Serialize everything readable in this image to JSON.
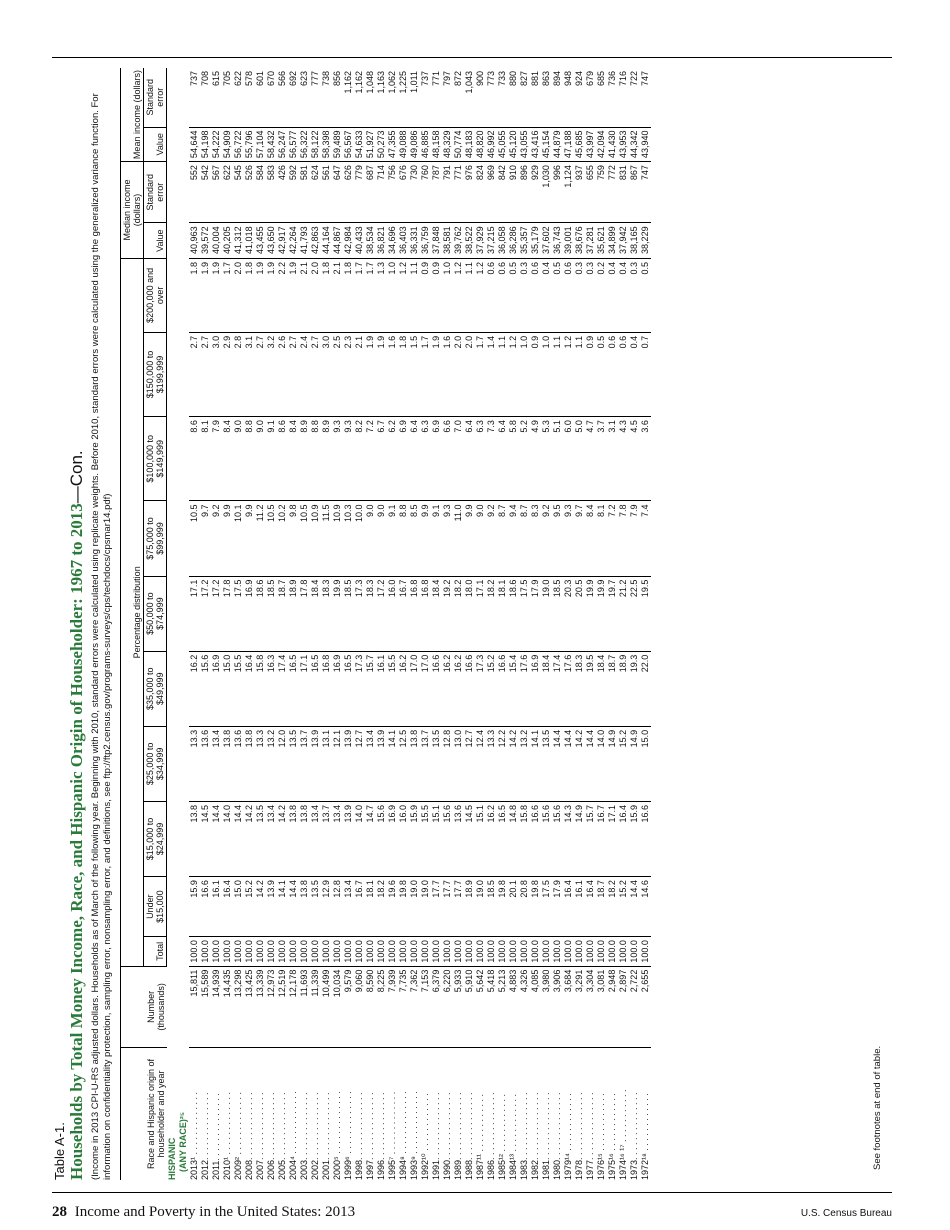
{
  "table_label": "Table A-1.",
  "title": "Households by Total Money Income, Race, and Hispanic Origin of Householder: 1967 to 2013",
  "title_suffix": "—Con.",
  "note": "(Income in 2013 CPI-U-RS adjusted dollars. Households as of March of the following year. Beginning with 2010, standard errors were calculated using replicate weights. Before 2010, standard errors were calculated using the generalized variance function. For information on confidentiality protection, sampling error, nonsampling error, and definitions, see ftp://ftp2.census.gov/programs-surveys/cps/techdocs/cpsmar14.pdf)",
  "headers": {
    "race": "Race and Hispanic origin of householder and year",
    "number": "Number (thousands)",
    "pct_group": "Percentage distribution",
    "median_group": "Median income (dollars)",
    "mean_group": "Mean income (dollars)",
    "total": "Total",
    "under15": "Under $15,000",
    "b15_25": "$15,000 to $24,999",
    "b25_35": "$25,000 to $34,999",
    "b35_50": "$35,000 to $49,999",
    "b50_75": "$50,000 to $74,999",
    "b75_100": "$75,000 to $99,999",
    "b100_150": "$100,000 to $149,999",
    "b150_200": "$150,000 to $199,999",
    "b200": "$200,000 and over",
    "value": "Value",
    "se": "Standard error"
  },
  "section1": "HISPANIC",
  "section2": "(ANY RACE)²⁵",
  "rows": [
    [
      "2013¹ . . . . . . . . . . . . .",
      "15,811",
      "100.0",
      "15.9",
      "13.8",
      "13.3",
      "16.2",
      "17.1",
      "10.5",
      "8.6",
      "2.7",
      "1.8",
      "40,963",
      "552",
      "54,644",
      "737"
    ],
    [
      "2012. . . . . . . . . . . . . .",
      "15,589",
      "100.0",
      "16.6",
      "14.5",
      "13.6",
      "15.6",
      "17.2",
      "9.7",
      "8.1",
      "2.7",
      "1.9",
      "39,572",
      "542",
      "54,198",
      "708"
    ],
    [
      "2011. . . . . . . . . . . . . .",
      "14,939",
      "100.0",
      "16.1",
      "14.4",
      "13.4",
      "16.9",
      "17.2",
      "9.2",
      "7.9",
      "3.0",
      "1.9",
      "40,004",
      "567",
      "54,222",
      "615"
    ],
    [
      "2010¹ . . . . . . . . . . . . .",
      "14,435",
      "100.0",
      "16.4",
      "14.0",
      "13.8",
      "15.0",
      "17.8",
      "9.9",
      "8.4",
      "2.9",
      "1.7",
      "40,205",
      "622",
      "54,909",
      "705"
    ],
    [
      "2009² . . . . . . . . . . . . .",
      "13,298",
      "100.0",
      "15.0",
      "14.4",
      "13.6",
      "15.5",
      "17.5",
      "10.1",
      "9.0",
      "2.8",
      "2.0",
      "41,312",
      "545",
      "56,722",
      "622"
    ],
    [
      "2008. . . . . . . . . . . . . .",
      "13,425",
      "100.0",
      "15.2",
      "14.2",
      "13.8",
      "16.4",
      "16.9",
      "9.9",
      "8.8",
      "3.1",
      "1.8",
      "41,018",
      "526",
      "55,796",
      "578"
    ],
    [
      "2007. . . . . . . . . . . . . .",
      "13,339",
      "100.0",
      "14.2",
      "13.5",
      "13.3",
      "15.8",
      "18.6",
      "11.2",
      "9.0",
      "2.7",
      "1.9",
      "43,455",
      "584",
      "57,104",
      "601"
    ],
    [
      "2006. . . . . . . . . . . . . .",
      "12,973",
      "100.0",
      "13.9",
      "13.4",
      "13.2",
      "16.3",
      "18.5",
      "10.5",
      "9.1",
      "3.2",
      "1.9",
      "43,650",
      "583",
      "58,432",
      "670"
    ],
    [
      "2005. . . . . . . . . . . . . .",
      "12,519",
      "100.0",
      "14.1",
      "14.2",
      "12.0",
      "17.4",
      "18.7",
      "10.2",
      "8.6",
      "2.6",
      "2.2",
      "42,917",
      "426",
      "56,247",
      "566"
    ],
    [
      "2004⁴ . . . . . . . . . . . . .",
      "12,178",
      "100.0",
      "14.4",
      "13.8",
      "13.5",
      "16.5",
      "18.9",
      "9.8",
      "8.4",
      "2.7",
      "1.9",
      "42,264",
      "592",
      "56,577",
      "692"
    ],
    [
      "2003. . . . . . . . . . . . . .",
      "11,693",
      "100.0",
      "13.8",
      "13.8",
      "13.7",
      "17.1",
      "17.8",
      "10.5",
      "8.9",
      "2.4",
      "2.1",
      "41,793",
      "581",
      "56,322",
      "623"
    ],
    [
      "2002. . . . . . . . . . . . . .",
      "11,339",
      "100.0",
      "13.5",
      "13.4",
      "13.9",
      "16.5",
      "18.4",
      "10.9",
      "8.8",
      "2.7",
      "2.0",
      "42,863",
      "624",
      "58,122",
      "777"
    ],
    [
      "2001. . . . . . . . . . . . . .",
      "10,499",
      "100.0",
      "12.9",
      "13.7",
      "13.1",
      "16.8",
      "18.3",
      "11.5",
      "8.9",
      "3.0",
      "1.8",
      "44,164",
      "561",
      "58,398",
      "738"
    ],
    [
      "2000⁵ . . . . . . . . . . . . .",
      "10,034",
      "100.0",
      "12.8",
      "13.4",
      "12.1",
      "16.9",
      "19.9",
      "10.9",
      "9.3",
      "2.5",
      "2.1",
      "44,867",
      "647",
      "59,489",
      "856"
    ],
    [
      "1999⁶ . . . . . . . . . . . . .",
      "9,579",
      "100.0",
      "13.4",
      "13.9",
      "13.9",
      "16.5",
      "18.5",
      "10.3",
      "9.3",
      "2.3",
      "1.8",
      "42,984",
      "626",
      "56,567",
      "1,162"
    ],
    [
      "1998. . . . . . . . . . . . . .",
      "9,060",
      "100.0",
      "16.7",
      "14.0",
      "12.7",
      "17.3",
      "17.3",
      "10.0",
      "8.2",
      "2.1",
      "1.7",
      "40,433",
      "779",
      "54,633",
      "1,162"
    ],
    [
      "1997. . . . . . . . . . . . . .",
      "8,590",
      "100.0",
      "18.1",
      "14.7",
      "13.4",
      "15.7",
      "18.3",
      "9.0",
      "7.2",
      "1.9",
      "1.7",
      "38,534",
      "687",
      "51,927",
      "1,048"
    ],
    [
      "1996. . . . . . . . . . . . . .",
      "8,225",
      "100.0",
      "18.2",
      "15.6",
      "13.9",
      "16.1",
      "17.2",
      "9.0",
      "6.7",
      "1.9",
      "1.3",
      "36,821",
      "714",
      "50,273",
      "1,163"
    ],
    [
      "1995⁷ . . . . . . . . . . . . .",
      "7,939",
      "100.0",
      "19.6",
      "16.9",
      "14.1",
      "15.5",
      "16.0",
      "9.1",
      "6.2",
      "1.6",
      "1.0",
      "34,696",
      "756",
      "47,355",
      "1,062"
    ],
    [
      "1994⁸ . . . . . . . . . . . . .",
      "7,735",
      "100.0",
      "19.8",
      "16.0",
      "12.5",
      "16.2",
      "16.7",
      "8.8",
      "6.9",
      "1.8",
      "1.2",
      "36,403",
      "676",
      "49,088",
      "1,225"
    ],
    [
      "1993⁹ . . . . . . . . . . . . .",
      "7,362",
      "100.0",
      "19.0",
      "15.9",
      "13.8",
      "17.0",
      "16.8",
      "8.5",
      "6.4",
      "1.5",
      "1.1",
      "36,331",
      "730",
      "49,086",
      "1,011"
    ],
    [
      "1992¹⁰ . . . . . . . . . . . .",
      "7,153",
      "100.0",
      "19.0",
      "15.5",
      "13.7",
      "17.0",
      "16.8",
      "9.9",
      "6.3",
      "1.7",
      "0.9",
      "36,759",
      "760",
      "46,885",
      "737"
    ],
    [
      "1991. . . . . . . . . . . . . .",
      "6,379",
      "100.0",
      "17.7",
      "15.1",
      "13.5",
      "16.6",
      "18.4",
      "9.1",
      "6.9",
      "1.9",
      "0.9",
      "37,848",
      "787",
      "48,158",
      "771"
    ],
    [
      "1990. . . . . . . . . . . . . .",
      "6,220",
      "100.0",
      "17.7",
      "15.6",
      "12.8",
      "16.2",
      "19.2",
      "9.3",
      "6.6",
      "1.6",
      "1.0",
      "38,581",
      "791",
      "48,329",
      "797"
    ],
    [
      "1989. . . . . . . . . . . . . .",
      "5,933",
      "100.0",
      "17.7",
      "13.6",
      "13.0",
      "16.2",
      "18.2",
      "11.0",
      "7.0",
      "2.0",
      "1.2",
      "39,762",
      "771",
      "50,774",
      "872"
    ],
    [
      "1988. . . . . . . . . . . . . .",
      "5,910",
      "100.0",
      "18.9",
      "14.5",
      "12.7",
      "16.6",
      "18.0",
      "9.9",
      "6.4",
      "2.0",
      "1.1",
      "38,522",
      "976",
      "48,183",
      "1,043"
    ],
    [
      "1987¹¹ . . . . . . . . . . . .",
      "5,642",
      "100.0",
      "19.0",
      "15.1",
      "12.4",
      "17.3",
      "17.1",
      "9.0",
      "6.3",
      "1.7",
      "1.2",
      "37,929",
      "824",
      "48,820",
      "900"
    ],
    [
      "1986. . . . . . . . . . . . . .",
      "5,418",
      "100.0",
      "18.5",
      "16.2",
      "13.3",
      "15.2",
      "18.2",
      "9.2",
      "7.3",
      "1.4",
      "0.6",
      "37,215",
      "969",
      "46,992",
      "773"
    ],
    [
      "1985¹² . . . . . . . . . . . .",
      "5,213",
      "100.0",
      "19.8",
      "16.5",
      "12.2",
      "16.6",
      "18.1",
      "8.7",
      "6.4",
      "1.1",
      "0.6",
      "36,058",
      "842",
      "45,055",
      "733"
    ],
    [
      "1984¹³ . . . . . . . . . . . .",
      "4,883",
      "100.0",
      "20.1",
      "14.8",
      "14.2",
      "15.4",
      "18.6",
      "9.4",
      "5.8",
      "1.2",
      "0.5",
      "36,286",
      "910",
      "45,120",
      "880"
    ],
    [
      "1983. . . . . . . . . . . . . .",
      "4,326",
      "100.0",
      "20.8",
      "15.8",
      "13.2",
      "17.6",
      "17.5",
      "8.7",
      "5.2",
      "1.0",
      "0.3",
      "35,357",
      "896",
      "43,055",
      "827"
    ],
    [
      "1982. . . . . . . . . . . . . .",
      "4,085",
      "100.0",
      "19.8",
      "16.6",
      "14.1",
      "16.9",
      "17.9",
      "8.3",
      "4.9",
      "0.9",
      "0.6",
      "35,179",
      "929",
      "43,416",
      "881"
    ],
    [
      "1981. . . . . . . . . . . . . .",
      "3,980",
      "100.0",
      "17.5",
      "15.6",
      "13.5",
      "18.4",
      "19.0",
      "9.2",
      "5.3",
      "1.0",
      "0.4",
      "37,602",
      "1,030",
      "45,154",
      "863"
    ],
    [
      "1980. . . . . . . . . . . . . .",
      "3,906",
      "100.0",
      "17.9",
      "15.6",
      "14.4",
      "17.4",
      "18.5",
      "9.5",
      "5.1",
      "1.1",
      "0.5",
      "36,743",
      "996",
      "44,879",
      "894"
    ],
    [
      "1979¹⁴ . . . . . . . . . . . .",
      "3,684",
      "100.0",
      "16.4",
      "14.3",
      "14.4",
      "17.6",
      "20.3",
      "9.3",
      "6.0",
      "1.2",
      "0.6",
      "39,001",
      "1,124",
      "47,188",
      "948"
    ],
    [
      "1978. . . . . . . . . . . . . .",
      "3,291",
      "100.0",
      "16.1",
      "14.9",
      "14.2",
      "18.3",
      "20.5",
      "9.7",
      "5.0",
      "1.1",
      "0.3",
      "38,676",
      "937",
      "45,685",
      "924"
    ],
    [
      "1977. . . . . . . . . . . . . .",
      "3,304",
      "100.0",
      "16.4",
      "15.7",
      "14.4",
      "19.5",
      "19.9",
      "8.4",
      "4.7",
      "0.9",
      "0.3",
      "37,281",
      "655",
      "43,997",
      "679"
    ],
    [
      "1976¹⁵ . . . . . . . . . . . .",
      "3,081",
      "100.0",
      "18.7",
      "16.7",
      "14.0",
      "18.4",
      "19.9",
      "8.1",
      "3.7",
      "0.5",
      "0.2",
      "35,621",
      "759",
      "42,094",
      "685"
    ],
    [
      "1975¹⁶ . . . . . . . . . . . .",
      "2,948",
      "100.0",
      "18.2",
      "17.1",
      "14.9",
      "18.7",
      "19.7",
      "7.2",
      "3.1",
      "0.6",
      "0.4",
      "34,899",
      "772",
      "41,430",
      "736"
    ],
    [
      "1974¹⁶ ¹⁷ . . . . . . . . . . .",
      "2,897",
      "100.0",
      "15.2",
      "16.4",
      "15.2",
      "18.9",
      "21.2",
      "7.8",
      "4.3",
      "0.6",
      "0.4",
      "37,942",
      "831",
      "43,953",
      "716"
    ],
    [
      "1973. . . . . . . . . . . . . .",
      "2,722",
      "100.0",
      "14.4",
      "15.9",
      "14.9",
      "19.3",
      "22.5",
      "7.9",
      "4.5",
      "0.4",
      "0.3",
      "38,165",
      "867",
      "44,342",
      "722"
    ],
    [
      "1972¹⁸ . . . . . . . . . . . .",
      "2,655",
      "100.0",
      "14.6",
      "16.6",
      "15.0",
      "22.0",
      "19.5",
      "7.4",
      "3.6",
      "0.7",
      "0.5",
      "38,229",
      "747",
      "43,940",
      "747"
    ]
  ],
  "footnote_ref": "See footnotes at end of table.",
  "footer": {
    "page_number": "28",
    "publication": "Income and Poverty in the United States: 2013",
    "agency": "U.S. Census Bureau"
  }
}
